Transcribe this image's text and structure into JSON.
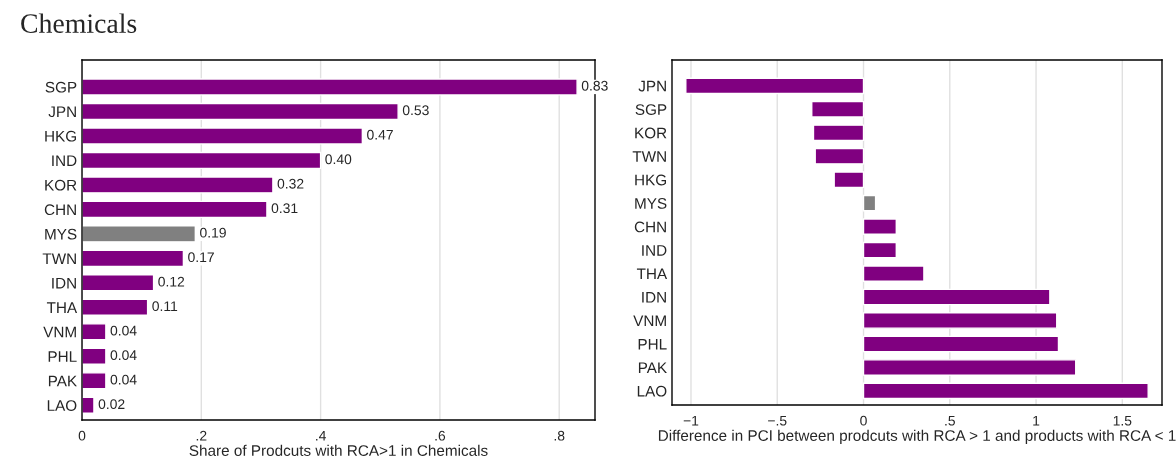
{
  "chart_data": [
    {
      "type": "bar",
      "orientation": "horizontal",
      "title": "Chemicals",
      "xlabel": "Share of Prodcuts with RCA>1 in Chemicals",
      "categories": [
        "SGP",
        "JPN",
        "HKG",
        "IND",
        "KOR",
        "CHN",
        "MYS",
        "TWN",
        "IDN",
        "THA",
        "VNM",
        "PHL",
        "PAK",
        "LAO"
      ],
      "values": [
        0.83,
        0.53,
        0.47,
        0.4,
        0.32,
        0.31,
        0.19,
        0.17,
        0.12,
        0.11,
        0.04,
        0.04,
        0.04,
        0.02
      ],
      "value_labels": [
        "0.83",
        "0.53",
        "0.47",
        "0.40",
        "0.32",
        "0.31",
        "0.19",
        "0.17",
        "0.12",
        "0.11",
        "0.04",
        "0.04",
        "0.04",
        "0.02"
      ],
      "colors": [
        "#800080",
        "#800080",
        "#800080",
        "#800080",
        "#800080",
        "#800080",
        "#808080",
        "#800080",
        "#800080",
        "#800080",
        "#800080",
        "#800080",
        "#800080",
        "#800080"
      ],
      "xlim": [
        0,
        0.86
      ],
      "xticks": [
        0,
        {
          "value": 0.2,
          "label": ".2"
        },
        {
          "value": 0.4,
          "label": ".4"
        },
        {
          "value": 0.6,
          "label": ".6"
        },
        {
          "value": 0.8,
          "label": ".8"
        }
      ],
      "grid": "x",
      "legend": false
    },
    {
      "type": "bar",
      "orientation": "horizontal",
      "xlabel": "Difference in PCI between prodcuts with RCA > 1 and products with RCA < 1",
      "categories": [
        "JPN",
        "SGP",
        "KOR",
        "TWN",
        "HKG",
        "MYS",
        "CHN",
        "IND",
        "THA",
        "IDN",
        "VNM",
        "PHL",
        "PAK",
        "LAO"
      ],
      "values": [
        -1.03,
        -0.3,
        -0.29,
        -0.28,
        -0.17,
        0.07,
        0.19,
        0.19,
        0.35,
        1.08,
        1.12,
        1.13,
        1.23,
        1.65
      ],
      "colors": [
        "#800080",
        "#800080",
        "#800080",
        "#800080",
        "#800080",
        "#808080",
        "#800080",
        "#800080",
        "#800080",
        "#800080",
        "#800080",
        "#800080",
        "#800080",
        "#800080"
      ],
      "xlim": [
        -1.11,
        1.73
      ],
      "xticks": [
        {
          "value": -1,
          "label": "−1"
        },
        {
          "value": -0.5,
          "label": "−.5"
        },
        0,
        {
          "value": 0.5,
          "label": ".5"
        },
        1,
        1.5
      ],
      "grid": "x",
      "legend": false
    }
  ]
}
